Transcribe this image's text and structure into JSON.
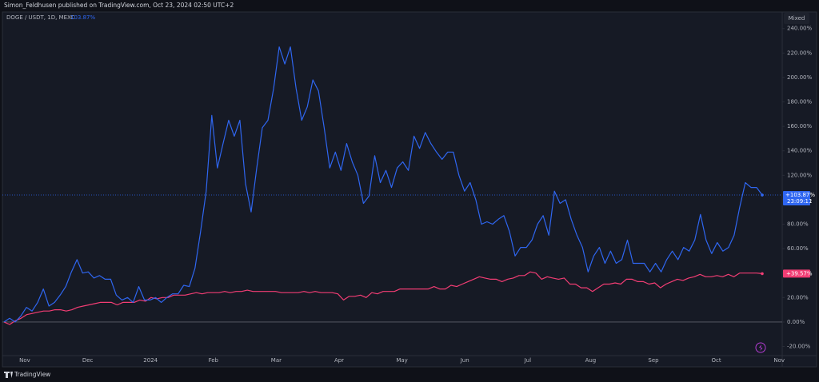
{
  "header": "Simon_Feldhusen published on TradingView.com, Oct 23, 2024 02:50 UTC+2",
  "footer": "TradingView",
  "mode_button": "Mixed",
  "chart_data": {
    "type": "line",
    "legend_title": "DOGE / USDT, 1D, MEXC",
    "legend_value": "103.87%",
    "countdown": "23:09:11",
    "x_labels": [
      "Nov",
      "Dec",
      "2024",
      "Feb",
      "Mar",
      "Apr",
      "May",
      "Jun",
      "Jul",
      "Aug",
      "Sep",
      "Oct",
      "Nov"
    ],
    "ylim": [
      -27.5,
      251.6
    ],
    "yticks": [
      {
        "value": 240,
        "label": "240.00%"
      },
      {
        "value": 220,
        "label": "220.00%"
      },
      {
        "value": 200,
        "label": "200.00%"
      },
      {
        "value": 180,
        "label": "180.00%"
      },
      {
        "value": 160,
        "label": "160.00%"
      },
      {
        "value": 140,
        "label": "140.00%"
      },
      {
        "value": 120,
        "label": "120.00%"
      },
      {
        "value": 100,
        "label": "100.00%"
      },
      {
        "value": 80,
        "label": "80.00%"
      },
      {
        "value": 60,
        "label": "60.00%"
      },
      {
        "value": 40,
        "label": "40.00%"
      },
      {
        "value": 20,
        "label": "20.00%"
      },
      {
        "value": 0,
        "label": "0.00%"
      },
      {
        "value": -20,
        "label": "-20.00%"
      }
    ],
    "series": [
      {
        "color": "#2f66f0",
        "last_label": "+103.87%",
        "values": [
          0,
          3,
          0,
          5,
          12,
          9,
          16,
          27,
          13,
          16,
          22,
          29,
          41,
          51,
          40,
          41,
          36,
          38,
          35,
          35,
          22,
          18,
          20,
          16,
          29,
          18,
          18,
          20,
          16,
          20,
          23,
          23,
          30,
          29,
          44,
          74,
          107,
          169,
          126,
          146,
          165,
          152,
          165,
          113,
          90,
          126,
          159,
          165,
          191,
          225,
          211,
          225,
          191,
          165,
          176,
          198,
          189,
          159,
          126,
          139,
          124,
          146,
          131,
          120,
          97,
          103,
          136,
          114,
          124,
          110,
          126,
          131,
          124,
          152,
          142,
          155,
          146,
          139,
          133,
          139,
          139,
          120,
          107,
          114,
          100,
          80,
          82,
          80,
          84,
          87,
          74,
          54,
          61,
          61,
          67,
          80,
          87,
          71,
          107,
          97,
          100,
          84,
          71,
          61,
          41,
          54,
          61,
          48,
          58,
          48,
          51,
          67,
          48,
          48,
          48,
          41,
          48,
          41,
          51,
          58,
          51,
          61,
          58,
          67,
          88,
          67,
          56,
          65,
          58,
          61,
          71,
          94,
          114,
          110,
          110,
          103.87
        ]
      },
      {
        "color": "#f23d74",
        "last_label": "+39.57%",
        "values": [
          0,
          -2,
          1,
          3,
          6,
          7,
          8,
          9,
          9,
          10,
          10,
          9,
          10,
          12,
          13,
          14,
          15,
          16,
          16,
          16,
          14,
          16,
          16,
          16,
          18,
          17,
          20,
          19,
          20,
          20,
          22,
          22,
          22,
          23,
          24,
          23,
          24,
          24,
          24,
          25,
          24,
          25,
          25,
          26,
          25,
          25,
          25,
          25,
          25,
          24,
          24,
          24,
          24,
          25,
          24,
          25,
          24,
          24,
          24,
          23,
          18,
          21,
          21,
          22,
          20,
          24,
          23,
          25,
          25,
          25,
          27,
          27,
          27,
          27,
          27,
          27,
          29,
          27,
          27,
          30,
          29,
          31,
          33,
          35,
          37,
          36,
          35,
          35,
          33,
          35,
          36,
          38,
          38,
          41,
          40,
          35,
          37,
          36,
          35,
          36,
          31,
          31,
          28,
          28,
          25,
          28,
          31,
          31,
          32,
          31,
          35,
          35,
          33,
          33,
          31,
          32,
          28,
          31,
          33,
          35,
          34,
          36,
          37,
          39,
          37,
          37,
          38,
          37,
          39,
          37,
          40,
          40,
          40,
          40,
          39.57
        ]
      }
    ]
  }
}
